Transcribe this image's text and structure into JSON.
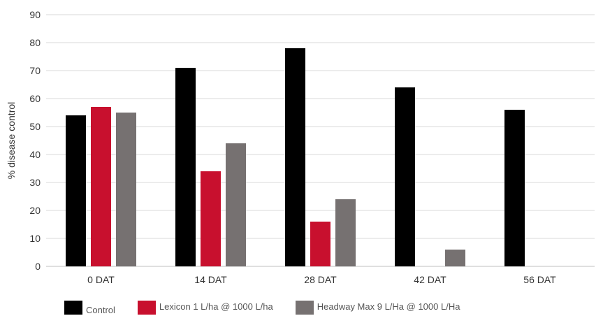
{
  "chart_data": {
    "type": "bar",
    "title": "",
    "xlabel": "",
    "ylabel": "% disease control",
    "ylim": [
      0,
      90
    ],
    "yticks": [
      0,
      10,
      20,
      30,
      40,
      50,
      60,
      70,
      80,
      90
    ],
    "grid": true,
    "legend_position": "bottom",
    "categories": [
      "0 DAT",
      "14 DAT",
      "28 DAT",
      "42 DAT",
      "56 DAT"
    ],
    "series": [
      {
        "name": "Control",
        "color": "#000000",
        "values": [
          54,
          71,
          78,
          64,
          56
        ]
      },
      {
        "name": "Lexicon 1 L/ha @ 1000 L/ha",
        "color": "#c8102e",
        "values": [
          57,
          34,
          16,
          0,
          0
        ]
      },
      {
        "name": "Headway Max 9 L/Ha @ 1000 L/Ha",
        "color": "#767171",
        "values": [
          55,
          44,
          24,
          6,
          0
        ]
      }
    ]
  }
}
